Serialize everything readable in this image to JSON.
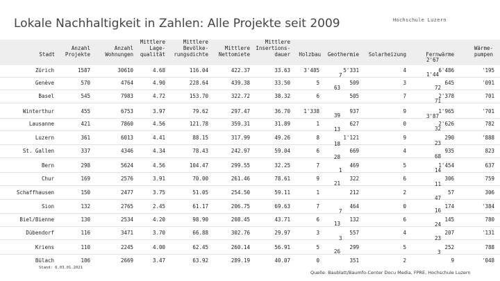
{
  "title": "Lokale Nachhaltigkeit in Zahlen: Alle Projekte seit 2009",
  "brand": "Hochschule Luzern",
  "headers": {
    "stadt": "Stadt",
    "anzahl_projekte": "Anzahl\nProjekte",
    "anzahl_wohnungen": "Anzahl\nWohnungen",
    "lagequalitaet": "Mittlere\nLage-\nqualität",
    "bevoelkerungsdichte": "Mittlere\nBevölke-\nrungsdichte",
    "nettomiete": "Mittlere\nNettomiete",
    "insertionsdauer": "Mittlere\nInsertions-\ndauer",
    "holzbau": "Holzbau",
    "geothermie": "Geothermie",
    "solarheizung": "Solarheizung",
    "fernwaerme": "Fernwärme",
    "waermepumpen": "Wärme-\npumpen"
  },
  "rows": [
    {
      "city": "Zürich",
      "projekte": "1587",
      "wohnungen": "30610",
      "lage": "4.68",
      "dichte": "116.04",
      "miete": "422.37",
      "dauer": "33.63",
      "holz": "3'485",
      "geo": "5'331",
      "solar": "4",
      "fern": "6'486",
      "waerme": "'195"
    },
    {
      "city": "Genève",
      "projekte": "570",
      "wohnungen": "4764",
      "lage": "4.90",
      "dichte": "228.64",
      "miete": "439.38",
      "dauer": "33.50",
      "holz": "5",
      "geo": "509",
      "solar": "3",
      "fern": "645",
      "waerme": "'091"
    },
    {
      "city": "Basel",
      "projekte": "545",
      "wohnungen": "7983",
      "lage": "4.72",
      "dichte": "153.70",
      "miete": "322.72",
      "dauer": "38.32",
      "holz": "6",
      "geo": "505",
      "solar": "7",
      "fern": "2'378",
      "waerme": "701"
    },
    {
      "city": "Winterthur",
      "projekte": "455",
      "wohnungen": "6753",
      "lage": "3.97",
      "dichte": "79.62",
      "miete": "297.47",
      "dauer": "36.70",
      "holz": "1'338",
      "geo": "937",
      "solar": "9",
      "fern": "1'965",
      "waerme": "'701"
    },
    {
      "city": "Lausanne",
      "projekte": "421",
      "wohnungen": "7860",
      "lage": "4.56",
      "dichte": "121.78",
      "miete": "359.31",
      "dauer": "31.89",
      "holz": "1",
      "geo": "627",
      "solar": "0",
      "fern": "2'626",
      "waerme": "782"
    },
    {
      "city": "Luzern",
      "projekte": "361",
      "wohnungen": "6013",
      "lage": "4.41",
      "dichte": "88.15",
      "miete": "317.99",
      "dauer": "49.26",
      "holz": "8",
      "geo": "1'121",
      "solar": "9",
      "fern": "290",
      "waerme": "'888"
    },
    {
      "city": "St. Gallen",
      "projekte": "337",
      "wohnungen": "4346",
      "lage": "4.34",
      "dichte": "78.43",
      "miete": "242.97",
      "dauer": "59.04",
      "holz": "6",
      "geo": "669",
      "solar": "4",
      "fern": "935",
      "waerme": "823"
    },
    {
      "city": "Bern",
      "projekte": "298",
      "wohnungen": "5624",
      "lage": "4.56",
      "dichte": "104.47",
      "miete": "299.55",
      "dauer": "32.25",
      "holz": "7",
      "geo": "469",
      "solar": "5",
      "fern": "1'454",
      "waerme": "637"
    },
    {
      "city": "Chur",
      "projekte": "169",
      "wohnungen": "2576",
      "lage": "3.91",
      "dichte": "70.00",
      "miete": "261.46",
      "dauer": "78.61",
      "holz": "9",
      "geo": "322",
      "solar": "6",
      "fern": "306",
      "waerme": "759"
    },
    {
      "city": "Schaffhausen",
      "projekte": "150",
      "wohnungen": "2477",
      "lage": "3.75",
      "dichte": "51.05",
      "miete": "254.50",
      "dauer": "59.11",
      "holz": "1",
      "geo": "212",
      "solar": "2",
      "fern": "57",
      "waerme": "306"
    },
    {
      "city": "Sion",
      "projekte": "132",
      "wohnungen": "2765",
      "lage": "2.45",
      "dichte": "61.17",
      "miete": "206.75",
      "dauer": "69.63",
      "holz": "7",
      "geo": "464",
      "solar": "0",
      "fern": "174",
      "waerme": "'384"
    },
    {
      "city": "Biel/Bienne",
      "projekte": "130",
      "wohnungen": "2534",
      "lage": "4.20",
      "dichte": "98.90",
      "miete": "208.45",
      "dauer": "43.71",
      "holz": "6",
      "geo": "132",
      "solar": "6",
      "fern": "145",
      "waerme": "780"
    },
    {
      "city": "Dübendorf",
      "projekte": "116",
      "wohnungen": "3471",
      "lage": "3.70",
      "dichte": "66.88",
      "miete": "302.76",
      "dauer": "29.97",
      "holz": "3",
      "geo": "557",
      "solar": "4",
      "fern": "207",
      "waerme": "'131"
    },
    {
      "city": "Kriens",
      "projekte": "110",
      "wohnungen": "2245",
      "lage": "4.00",
      "dichte": "62.45",
      "miete": "260.14",
      "dauer": "56.91",
      "holz": "5",
      "geo": "299",
      "solar": "5",
      "fern": "252",
      "waerme": "788"
    },
    {
      "city": "Bülach",
      "projekte": "106",
      "wohnungen": "2669",
      "lage": "3.47",
      "dichte": "63.92",
      "miete": "289.19",
      "dauer": "40.07",
      "holz": "0",
      "geo": "351",
      "solar": "2",
      "fern": "9",
      "waerme": "'048"
    }
  ],
  "offset_geo": [
    "7",
    "63",
    "39",
    "13",
    "18",
    "28",
    "1",
    "21",
    "7",
    "13",
    "3",
    "26"
  ],
  "offset_fern": [
    "2'67",
    "1'44",
    "72",
    "71",
    "3'87",
    "32",
    "23",
    "68",
    "14",
    "11",
    "47",
    "16",
    "24",
    "23",
    "3"
  ],
  "footer_left": "Stand: 6.03.01.2021",
  "source": "Quelle: Baublatt/Baumfo-Center Docu Media, FPRE, Hochschule Luzern"
}
